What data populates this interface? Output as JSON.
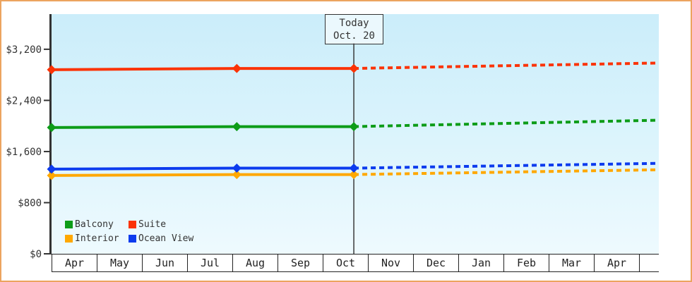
{
  "frame": {
    "border_color": "#eca45f",
    "background": "#ffffff",
    "plot_bg_top": "#cbedfa",
    "plot_bg_bottom": "#eefafe"
  },
  "chart_data": {
    "type": "line",
    "title": "",
    "xlabel": "",
    "ylabel": "",
    "grid": false,
    "legend_position": "bottom-left-inside",
    "x_labels": [
      "Apr",
      "May",
      "Jun",
      "Jul",
      "Aug",
      "Sep",
      "Oct",
      "Nov",
      "Dec",
      "Jan",
      "Feb",
      "Mar",
      "Apr"
    ],
    "y_ticks": [
      {
        "label": "$0",
        "value": 0
      },
      {
        "label": "$800",
        "value": 800
      },
      {
        "label": "$1,600",
        "value": 1600
      },
      {
        "label": "$2,400",
        "value": 2400
      },
      {
        "label": "$3,200",
        "value": 3200
      }
    ],
    "ylim": [
      0,
      3750
    ],
    "xlim": [
      0,
      13.44
    ],
    "today": {
      "label": "Today",
      "date_label": "Oct. 20",
      "x": 6.69
    },
    "series": [
      {
        "name": "Balcony",
        "color": "#0d9c18",
        "solid": {
          "x": [
            0,
            4.1,
            6.69
          ],
          "y": [
            1975,
            1990,
            1990
          ]
        },
        "forecast": {
          "x": [
            6.69,
            13.44
          ],
          "y": [
            1990,
            2090
          ]
        }
      },
      {
        "name": "Suite",
        "color": "#fb3306",
        "solid": {
          "x": [
            0,
            4.1,
            6.69
          ],
          "y": [
            2880,
            2900,
            2900
          ]
        },
        "forecast": {
          "x": [
            6.69,
            13.44
          ],
          "y": [
            2900,
            2985
          ]
        }
      },
      {
        "name": "Interior",
        "color": "#ffa800",
        "solid": {
          "x": [
            0,
            4.1,
            6.69
          ],
          "y": [
            1225,
            1240,
            1240
          ]
        },
        "forecast": {
          "x": [
            6.69,
            13.44
          ],
          "y": [
            1240,
            1315
          ]
        }
      },
      {
        "name": "Ocean View",
        "color": "#0c3bee",
        "solid": {
          "x": [
            0,
            4.1,
            6.69
          ],
          "y": [
            1325,
            1340,
            1340
          ]
        },
        "forecast": {
          "x": [
            6.69,
            13.44
          ],
          "y": [
            1340,
            1415
          ]
        }
      }
    ]
  }
}
